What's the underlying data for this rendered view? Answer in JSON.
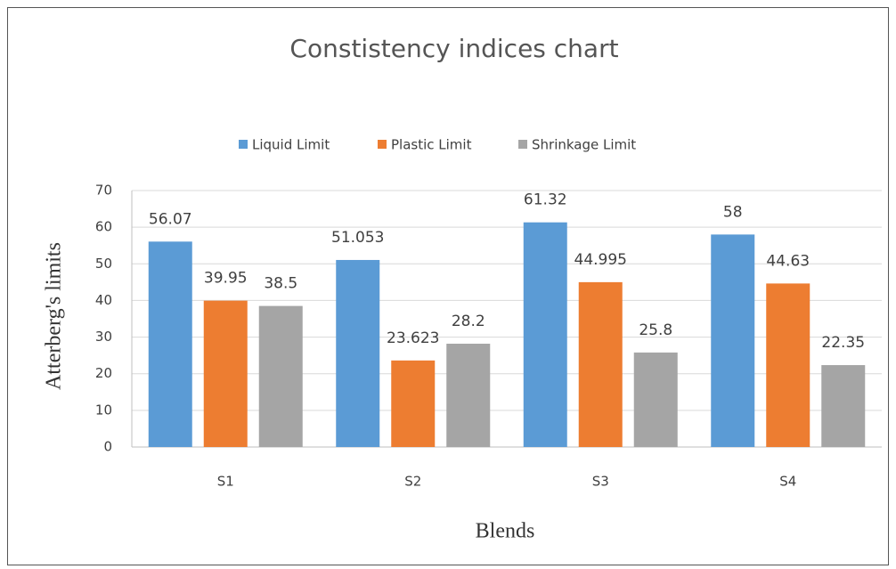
{
  "chart_data": {
    "type": "bar",
    "title": "Constistency indices chart",
    "categories": [
      "S1",
      "S2",
      "S3",
      "S4"
    ],
    "series": [
      {
        "name": "Liquid Limit",
        "color": "#5b9bd5",
        "values": [
          56.07,
          51.053,
          61.32,
          58
        ]
      },
      {
        "name": "Plastic Limit",
        "color": "#ed7d31",
        "values": [
          39.95,
          23.623,
          44.995,
          44.63
        ]
      },
      {
        "name": "Shrinkage Limit",
        "color": "#a5a5a5",
        "values": [
          38.5,
          28.2,
          25.8,
          22.35
        ]
      }
    ],
    "x_label": "Blends",
    "y_label": "Atterberg's limits",
    "ylim": [
      0,
      70
    ],
    "yticks": [
      0,
      10,
      20,
      30,
      40,
      50,
      60,
      70
    ],
    "grid": true,
    "legend": "top"
  }
}
